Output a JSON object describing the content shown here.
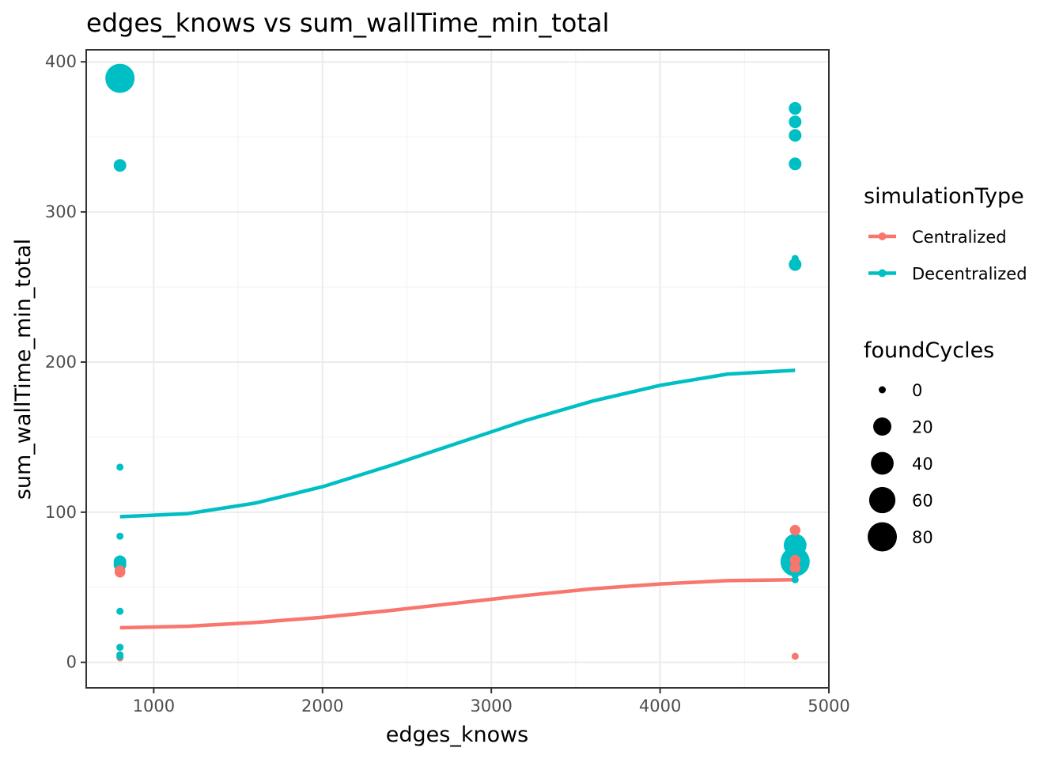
{
  "chart_data": {
    "type": "scatter",
    "title": "edges_knows  vs  sum_wallTime_min_total",
    "xlabel": "edges_knows",
    "ylabel": "sum_wallTime_min_total",
    "xlim": [
      600,
      5000
    ],
    "ylim": [
      -17,
      408
    ],
    "x_ticks": [
      1000,
      2000,
      3000,
      4000,
      5000
    ],
    "y_ticks": [
      0,
      100,
      200,
      300,
      400
    ],
    "grid": true,
    "legend_position": "right",
    "color_legend": {
      "title": "simulationType",
      "entries": [
        {
          "label": "Centralized",
          "color": "#F8766D"
        },
        {
          "label": "Decentralized",
          "color": "#00BFC4"
        }
      ]
    },
    "size_legend": {
      "title": "foundCycles",
      "entries": [
        {
          "label": "0",
          "value": 0
        },
        {
          "label": "20",
          "value": 20
        },
        {
          "label": "40",
          "value": 40
        },
        {
          "label": "60",
          "value": 60
        },
        {
          "label": "80",
          "value": 80
        }
      ]
    },
    "series": [
      {
        "name": "Centralized",
        "color": "#F8766D",
        "points": [
          {
            "x": 800,
            "y": 61,
            "foundCycles": 2
          },
          {
            "x": 800,
            "y": 60,
            "foundCycles": 2
          },
          {
            "x": 800,
            "y": 10,
            "foundCycles": 0
          },
          {
            "x": 800,
            "y": 3,
            "foundCycles": 0
          },
          {
            "x": 4800,
            "y": 88,
            "foundCycles": 2
          },
          {
            "x": 4800,
            "y": 68,
            "foundCycles": 2
          },
          {
            "x": 4800,
            "y": 63,
            "foundCycles": 2
          },
          {
            "x": 4800,
            "y": 4,
            "foundCycles": 0
          }
        ],
        "trend": [
          {
            "x": 800,
            "y": 23
          },
          {
            "x": 1200,
            "y": 24
          },
          {
            "x": 1600,
            "y": 26.5
          },
          {
            "x": 2000,
            "y": 30
          },
          {
            "x": 2400,
            "y": 34.5
          },
          {
            "x": 2800,
            "y": 39.5
          },
          {
            "x": 3200,
            "y": 44.5
          },
          {
            "x": 3600,
            "y": 49
          },
          {
            "x": 4000,
            "y": 52.2
          },
          {
            "x": 4400,
            "y": 54.4
          },
          {
            "x": 4800,
            "y": 55
          }
        ]
      },
      {
        "name": "Decentralized",
        "color": "#00BFC4",
        "points": [
          {
            "x": 800,
            "y": 389,
            "foundCycles": 80
          },
          {
            "x": 800,
            "y": 331,
            "foundCycles": 5
          },
          {
            "x": 800,
            "y": 130,
            "foundCycles": 0
          },
          {
            "x": 800,
            "y": 84,
            "foundCycles": 0
          },
          {
            "x": 800,
            "y": 67,
            "foundCycles": 5
          },
          {
            "x": 800,
            "y": 65,
            "foundCycles": 5
          },
          {
            "x": 800,
            "y": 34,
            "foundCycles": 0
          },
          {
            "x": 800,
            "y": 10,
            "foundCycles": 0
          },
          {
            "x": 800,
            "y": 5,
            "foundCycles": 0
          },
          {
            "x": 800,
            "y": 4,
            "foundCycles": 0
          },
          {
            "x": 4800,
            "y": 369,
            "foundCycles": 5
          },
          {
            "x": 4800,
            "y": 360,
            "foundCycles": 5
          },
          {
            "x": 4800,
            "y": 351,
            "foundCycles": 5
          },
          {
            "x": 4800,
            "y": 332,
            "foundCycles": 5
          },
          {
            "x": 4800,
            "y": 269,
            "foundCycles": 0
          },
          {
            "x": 4800,
            "y": 265,
            "foundCycles": 5
          },
          {
            "x": 4800,
            "y": 78,
            "foundCycles": 40
          },
          {
            "x": 4800,
            "y": 67,
            "foundCycles": 80
          },
          {
            "x": 4800,
            "y": 62,
            "foundCycles": 5
          },
          {
            "x": 4800,
            "y": 58,
            "foundCycles": 0
          },
          {
            "x": 4800,
            "y": 55,
            "foundCycles": 0
          }
        ],
        "trend": [
          {
            "x": 800,
            "y": 97
          },
          {
            "x": 1200,
            "y": 99
          },
          {
            "x": 1600,
            "y": 106
          },
          {
            "x": 2000,
            "y": 117
          },
          {
            "x": 2400,
            "y": 131
          },
          {
            "x": 2800,
            "y": 146
          },
          {
            "x": 3200,
            "y": 161
          },
          {
            "x": 3600,
            "y": 174
          },
          {
            "x": 4000,
            "y": 184.5
          },
          {
            "x": 4400,
            "y": 192
          },
          {
            "x": 4800,
            "y": 194.5
          }
        ]
      }
    ]
  }
}
